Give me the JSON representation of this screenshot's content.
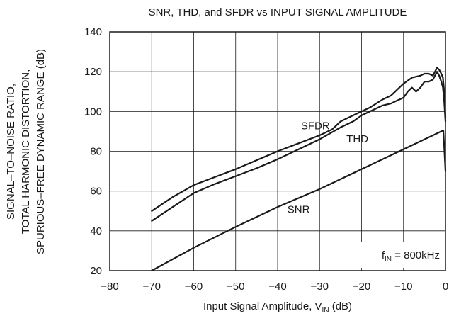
{
  "chart_data": {
    "type": "line",
    "title": "SNR, THD, and SFDR vs INPUT SIGNAL AMPLITUDE",
    "xlabel": {
      "main": "Input Signal Amplitude, V",
      "sub": "IN",
      "unit": " (dB)"
    },
    "ylabel": [
      "SIGNAL–TO–NOISE RATIO,",
      "TOTAL HARMONIC DISTORTION,",
      "SPURIOUS–FREE DYNAMIC RANGE (dB)"
    ],
    "xlim": [
      -80,
      0
    ],
    "ylim": [
      20,
      140
    ],
    "xticks": [
      -80,
      -70,
      -60,
      -50,
      -40,
      -30,
      -20,
      -10,
      0
    ],
    "xtick_labels": [
      "−80",
      "−70",
      "−60",
      "−50",
      "−40",
      "−30",
      "−20",
      "−10",
      "0"
    ],
    "yticks": [
      20,
      40,
      60,
      80,
      100,
      120,
      140
    ],
    "ytick_labels": [
      "20",
      "40",
      "60",
      "80",
      "100",
      "120",
      "140"
    ],
    "grid": true,
    "annotation": {
      "main": "f",
      "sub": "IN",
      "rest": " = 800kHz"
    },
    "series": [
      {
        "name": "SFDR",
        "x": [
          -70,
          -65,
          -60,
          -55,
          -50,
          -45,
          -40,
          -35,
          -30,
          -27,
          -25,
          -22,
          -20,
          -18,
          -15,
          -13,
          -12,
          -10,
          -8,
          -6,
          -5,
          -4,
          -3,
          -2,
          -1.5,
          -1,
          -0.6,
          -0.3,
          0
        ],
        "y": [
          50,
          57,
          63,
          67,
          71,
          75.5,
          80,
          84,
          88,
          91,
          95,
          98,
          100,
          102,
          106,
          108,
          110,
          114,
          117,
          118,
          119,
          119,
          118,
          122,
          121,
          119,
          117,
          110,
          97
        ]
      },
      {
        "name": "THD",
        "x": [
          -70,
          -65,
          -60,
          -55,
          -50,
          -45,
          -40,
          -35,
          -30,
          -25,
          -22,
          -20,
          -18,
          -15,
          -13,
          -12,
          -10,
          -9,
          -8,
          -7,
          -6,
          -5,
          -4,
          -3,
          -2,
          -1.5,
          -1,
          -0.6,
          -0.3,
          0
        ],
        "y": [
          45,
          52,
          59,
          63.5,
          67.5,
          71.5,
          76,
          81,
          86,
          92,
          95,
          98,
          100,
          103,
          104,
          105,
          107,
          110,
          112,
          110,
          112,
          115,
          115,
          116,
          120,
          118,
          115,
          112,
          105,
          95
        ]
      },
      {
        "name": "SNR",
        "x": [
          -70,
          -60,
          -50,
          -40,
          -30,
          -20,
          -10,
          -5,
          -2,
          -1,
          -0.5,
          0
        ],
        "y": [
          20,
          31.5,
          42,
          52,
          61,
          71,
          81,
          86,
          89,
          90,
          90.5,
          70
        ]
      }
    ],
    "series_labels": [
      {
        "text": "SFDR",
        "x": -31,
        "y": 91
      },
      {
        "text": "THD",
        "x": -21,
        "y": 84.5
      },
      {
        "text": "SNR",
        "x": -35,
        "y": 49
      }
    ]
  }
}
